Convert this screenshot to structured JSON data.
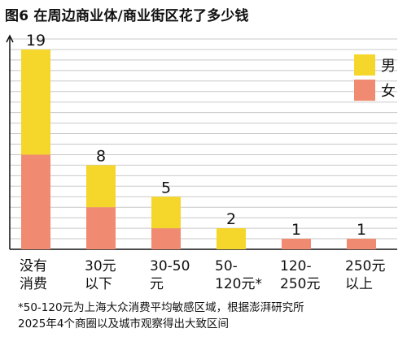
{
  "title": "图6 在周边商业体/商业街区花了多少钱",
  "chart_data": {
    "type": "bar",
    "stacked": true,
    "categories": [
      [
        "没有",
        "消费"
      ],
      [
        "30元",
        "以下"
      ],
      [
        "30-50",
        "元"
      ],
      [
        "50-",
        "120元*"
      ],
      [
        "120-",
        "250元"
      ],
      [
        "250元",
        "以上"
      ]
    ],
    "totals": [
      19,
      8,
      5,
      2,
      1,
      1
    ],
    "series": [
      {
        "name": "女",
        "color": "#f08a70",
        "values": [
          9,
          4,
          2,
          0,
          1,
          1
        ]
      },
      {
        "name": "男",
        "color": "#f5d62a",
        "values": [
          10,
          4,
          3,
          2,
          0,
          0
        ]
      }
    ],
    "ylim": [
      0,
      20
    ],
    "grid": true,
    "legend_position": "top-right"
  },
  "footnote": [
    "*50-120元为上海大众消费平均敏感区域，根据澎湃研究所",
    "2025年4个商圈以及城市观察得出大致区间"
  ]
}
